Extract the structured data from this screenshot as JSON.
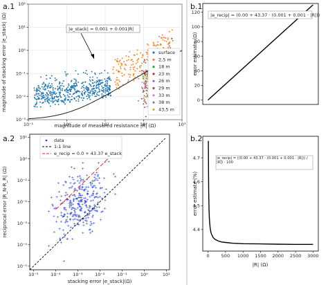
{
  "chart_data": [
    {
      "panel": "a.1",
      "type": "scatter",
      "xlabel": "magnitude of measured resistance |R| (Ω)",
      "ylabel": "magnitude of stacking error |e_stack| (Ω)",
      "xscale": "log",
      "yscale": "log",
      "xlim": [
        0.1,
        1000
      ],
      "ylim": [
        0.001,
        100
      ],
      "xticks": [
        {
          "v": 0.1,
          "label": "10⁻¹"
        },
        {
          "v": 1,
          "label": "10⁰"
        },
        {
          "v": 10,
          "label": "10¹"
        },
        {
          "v": 100,
          "label": "10²"
        },
        {
          "v": 1000,
          "label": "10³"
        }
      ],
      "yticks": [
        {
          "v": 0.001,
          "label": "10⁻³"
        },
        {
          "v": 0.01,
          "label": "10⁻²"
        },
        {
          "v": 0.1,
          "label": "10⁻¹"
        },
        {
          "v": 1,
          "label": "10⁰"
        },
        {
          "v": 10,
          "label": "10¹"
        },
        {
          "v": 100,
          "label": "10²"
        }
      ],
      "annotation": {
        "text": "|e_stack| = 0.001 + 0.001|R|",
        "x": 0.6,
        "y": 22
      },
      "envelope": {
        "a": 0.001,
        "b": 0.001,
        "label": "|e_stack| = 0.001 + 0.001|R|"
      },
      "legend_position": "right",
      "series": [
        {
          "name": "surface",
          "color": "#1f77b4",
          "cluster": "blue",
          "x": [
            0.15,
            0.3,
            0.6,
            1.2,
            2.5,
            5,
            9
          ],
          "y": [
            0.03,
            0.04,
            0.05,
            0.07,
            0.09,
            0.12,
            0.17
          ]
        },
        {
          "name": "2,5 m",
          "color": "#ff7f0e",
          "cluster": "orange",
          "x": [
            120,
            180,
            250,
            320,
            420,
            520
          ],
          "y": [
            0.25,
            0.5,
            1.2,
            2.5,
            5,
            8
          ]
        },
        {
          "name": "18 m",
          "color": "#2ca02c",
          "cluster": "high",
          "x": [
            140,
            200,
            280,
            360,
            450
          ],
          "y": [
            0.4,
            1,
            2.5,
            5,
            9
          ]
        },
        {
          "name": "23 m",
          "color": "#d62728",
          "cluster": "high",
          "x": [
            150,
            220,
            300,
            380
          ],
          "y": [
            0.5,
            1.3,
            3,
            6
          ]
        },
        {
          "name": "26 m",
          "color": "#9467bd",
          "cluster": "high",
          "x": [
            160,
            230,
            310,
            400
          ],
          "y": [
            0.6,
            1.5,
            3.5,
            7
          ]
        },
        {
          "name": "29 m",
          "color": "#8c564b",
          "cluster": "high",
          "x": [
            130,
            210,
            290,
            370
          ],
          "y": [
            0.5,
            1.2,
            3,
            6
          ]
        },
        {
          "name": "33 m",
          "color": "#e377c2",
          "cluster": "high",
          "x": [
            170,
            240,
            330,
            430
          ],
          "y": [
            0.7,
            1.8,
            4,
            8
          ]
        },
        {
          "name": "38 m",
          "color": "#7f7f7f",
          "cluster": "high",
          "x": [
            180,
            260,
            350
          ],
          "y": [
            0.8,
            2,
            5
          ]
        },
        {
          "name": "43,5 m",
          "color": "#bcbd22",
          "cluster": "high",
          "x": [
            190,
            270,
            360,
            480
          ],
          "y": [
            0.9,
            2.2,
            5.5,
            10
          ]
        }
      ]
    },
    {
      "panel": "a.2",
      "type": "scatter",
      "xlabel": "stacking error |e_stack|(Ω)",
      "ylabel": "reciprocal error |R_N-R_R| (Ω)",
      "xscale": "log",
      "yscale": "log",
      "xlim": [
        6.8e-06,
        14
      ],
      "ylim": [
        6.8e-06,
        14
      ],
      "xticks": [
        {
          "v": 1e-05,
          "label": "10⁻⁵"
        },
        {
          "v": 0.0001,
          "label": "10⁻⁴"
        },
        {
          "v": 0.001,
          "label": "10⁻³"
        },
        {
          "v": 0.01,
          "label": "10⁻²"
        },
        {
          "v": 0.1,
          "label": "10⁻¹"
        },
        {
          "v": 1,
          "label": "10⁰"
        },
        {
          "v": 10,
          "label": "10¹"
        }
      ],
      "yticks": [
        {
          "v": 1e-05,
          "label": "10⁻⁵"
        },
        {
          "v": 0.0001,
          "label": "10⁻⁴"
        },
        {
          "v": 0.001,
          "label": "10⁻³"
        },
        {
          "v": 0.01,
          "label": "10⁻²"
        },
        {
          "v": 0.1,
          "label": "10⁻¹"
        },
        {
          "v": 1,
          "label": "10⁰"
        },
        {
          "v": 10,
          "label": "10¹"
        }
      ],
      "legend_position": "top-left",
      "legend": [
        "data",
        "1:1 line",
        "e_recip = 0.0 + 43.37 e_stack"
      ],
      "fit": {
        "a": 0.0,
        "b": 43.37,
        "xrange": [
          0.0001,
          0.06
        ]
      },
      "identity_range": [
        6.8e-06,
        10
      ],
      "data": {
        "color": "#1f3bd6",
        "count": 300,
        "xcenter": 0.0012,
        "xspread": 0.6,
        "ycenter": 0.008,
        "yspread": 0.75,
        "xmin": 5e-05,
        "xmax": 0.05
      }
    },
    {
      "panel": "b.1",
      "type": "line",
      "ylabel": "error estimate (Ω)",
      "xlabel": "",
      "xlim": [
        -150,
        3150
      ],
      "ylim": [
        -6,
        132
      ],
      "xticks": [],
      "yticks": [
        0,
        20,
        40,
        60,
        80,
        100,
        120
      ],
      "formula": "|e_recip| = (0.00 + 43.37 · (0.001 + 0.001 · |R|))",
      "x": [
        0,
        3000
      ],
      "y": [
        0.0434,
        130.15
      ]
    },
    {
      "panel": "b.2",
      "type": "line",
      "ylabel": "error estimate (%)",
      "xlabel": "|R| (Ω)",
      "xlim": [
        -150,
        3150
      ],
      "ylim": [
        4.31,
        4.79
      ],
      "xticks": [
        0,
        500,
        1000,
        1500,
        2000,
        2500,
        3000
      ],
      "yticks": [
        4.4,
        4.5,
        4.6,
        4.7
      ],
      "formula": "|e_recip| = ((0.00 + 43.37 · (0.001 + 0.001 · |R|)) / |R|) · 100",
      "x": [
        10,
        15,
        20,
        30,
        40,
        60,
        80,
        100,
        150,
        200,
        300,
        400,
        500,
        700,
        1000,
        1500,
        2000,
        2500,
        3000
      ],
      "y": [
        4.771,
        4.626,
        4.554,
        4.482,
        4.445,
        4.409,
        4.391,
        4.38,
        4.366,
        4.359,
        4.352,
        4.348,
        4.346,
        4.343,
        4.341,
        4.34,
        4.339,
        4.338,
        4.338
      ]
    }
  ]
}
